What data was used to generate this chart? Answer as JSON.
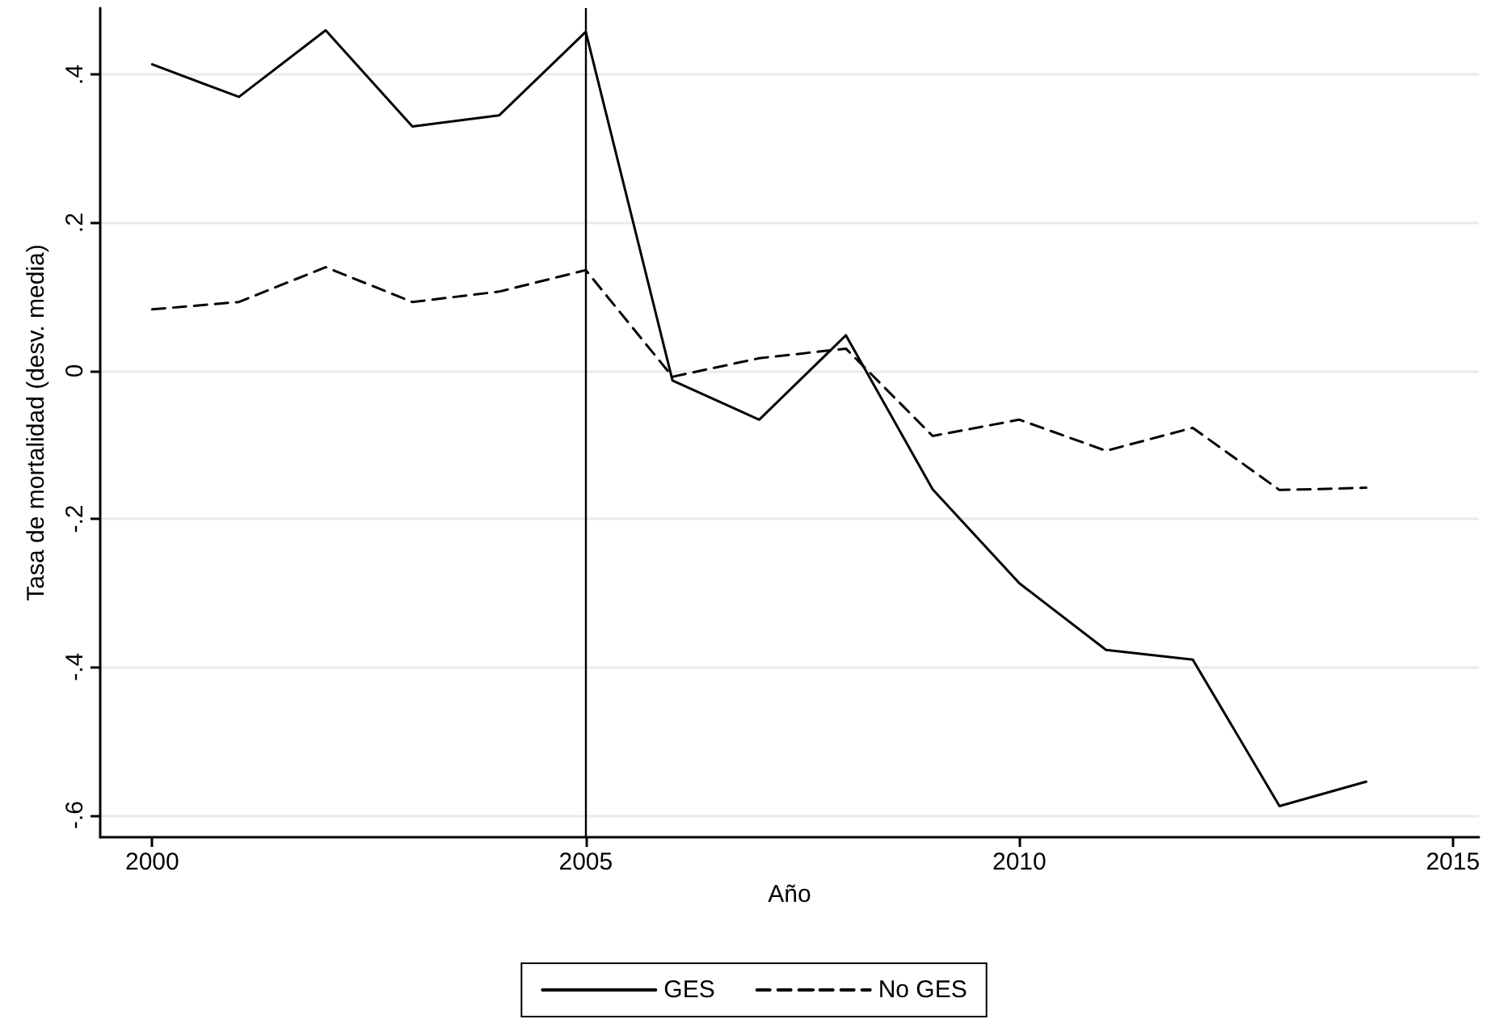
{
  "chart_data": {
    "type": "line",
    "xlabel": "Año",
    "ylabel": "Tasa de mortalidad (desv. media)",
    "x": [
      2000,
      2001,
      2002,
      2003,
      2004,
      2005,
      2006,
      2007,
      2008,
      2009,
      2010,
      2011,
      2012,
      2013,
      2014
    ],
    "series": [
      {
        "name": "GES",
        "color": "#000000",
        "line_style": "solid",
        "values": [
          0.414,
          0.37,
          0.46,
          0.33,
          0.345,
          0.458,
          -0.013,
          -0.066,
          0.048,
          -0.16,
          -0.287,
          -0.377,
          -0.39,
          -0.588,
          -0.555
        ]
      },
      {
        "name": "No GES",
        "color": "#000000",
        "line_style": "dashed",
        "values": [
          0.083,
          0.093,
          0.14,
          0.093,
          0.107,
          0.136,
          -0.008,
          0.017,
          0.03,
          -0.088,
          -0.066,
          -0.108,
          -0.077,
          -0.161,
          -0.158
        ]
      }
    ],
    "xlim": [
      1999.4,
      2015.3
    ],
    "xticks": [
      2000,
      2005,
      2010,
      2015
    ],
    "ylim": [
      -0.63,
      0.49
    ],
    "yticks": [
      {
        "value": -0.6,
        "label": "-.6"
      },
      {
        "value": -0.4,
        "label": "-.4"
      },
      {
        "value": -0.2,
        "label": "-.2"
      },
      0,
      {
        "value": 0.2,
        "label": ".2"
      },
      {
        "value": 0.4,
        "label": ".4"
      }
    ],
    "ref_lines": [
      {
        "axis": "x",
        "value": 2005,
        "color": "#000000",
        "line_style": "solid"
      }
    ],
    "grid": "y",
    "legend": "bottom",
    "marker": "none"
  }
}
